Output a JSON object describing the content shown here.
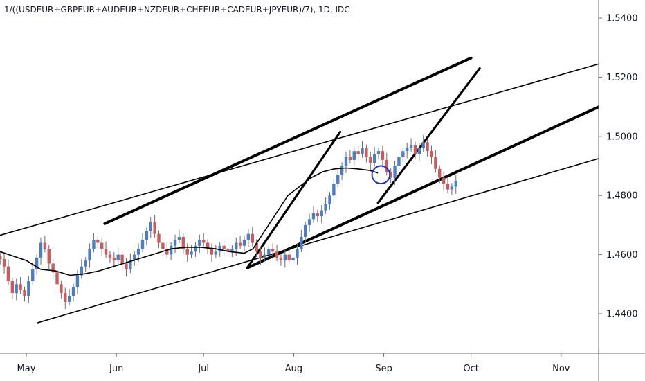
{
  "symbol_title": "1/((USDEUR+GBPEUR+AUDEUR+NZDEUR+CHFEUR+CADEUR+JPYEUR)/7), 1D, IDC",
  "colors": {
    "up": "#4a7fc4",
    "down": "#cd5a5a",
    "wick": "#6b6b6b",
    "ma": "#000000",
    "trendline": "#000000",
    "circle": "#1f2fd0",
    "axis": "#6b6b6b"
  },
  "chart_data": {
    "type": "candlestick",
    "title": "1/((USDEUR+GBPEUR+AUDEUR+NZDEUR+CHFEUR+CADEUR+JPYEUR)/7), 1D, IDC",
    "x_tick_labels": [
      "May",
      "Jun",
      "Jul",
      "Aug",
      "Sep",
      "Oct",
      "Nov"
    ],
    "x_tick_days": [
      0,
      31,
      61,
      92,
      123,
      153,
      184
    ],
    "y_tick_labels": [
      "1.4400",
      "1.4600",
      "1.4800",
      "1.5000",
      "1.5200",
      "1.5400"
    ],
    "ylim": [
      1.4285,
      1.545
    ],
    "xlim_days": [
      -9,
      197
    ],
    "candles_daily_closes": [
      1.4585,
      1.456,
      1.451,
      1.447,
      1.45,
      1.448,
      1.446,
      1.451,
      1.455,
      1.459,
      1.464,
      1.462,
      1.457,
      1.454,
      1.45,
      1.447,
      1.444,
      1.446,
      1.449,
      1.453,
      1.456,
      1.458,
      1.462,
      1.465,
      1.464,
      1.462,
      1.46,
      1.459,
      1.458,
      1.46,
      1.457,
      1.455,
      1.458,
      1.46,
      1.462,
      1.465,
      1.468,
      1.471,
      1.467,
      1.464,
      1.462,
      1.46,
      1.463,
      1.465,
      1.466,
      1.462,
      1.46,
      1.461,
      1.463,
      1.465,
      1.464,
      1.462,
      1.46,
      1.461,
      1.463,
      1.462,
      1.461,
      1.462,
      1.464,
      1.463,
      1.465,
      1.467,
      1.464,
      1.461,
      1.459,
      1.46,
      1.462,
      1.461,
      1.459,
      1.458,
      1.46,
      1.458,
      1.459,
      1.462,
      1.466,
      1.47,
      1.472,
      1.474,
      1.473,
      1.475,
      1.477,
      1.48,
      1.484,
      1.487,
      1.49,
      1.493,
      1.492,
      1.495,
      1.494,
      1.496,
      1.493,
      1.491,
      1.494,
      1.495,
      1.492,
      1.488,
      1.486,
      1.49,
      1.493,
      1.495,
      1.496,
      1.497,
      1.494,
      1.496,
      1.498,
      1.495,
      1.493,
      1.489,
      1.486,
      1.484,
      1.482,
      1.483,
      1.485
    ],
    "moving_average": [
      [
        -9,
        1.461
      ],
      [
        0,
        1.458
      ],
      [
        5,
        1.455
      ],
      [
        10,
        1.4545
      ],
      [
        15,
        1.453
      ],
      [
        20,
        1.4535
      ],
      [
        25,
        1.4545
      ],
      [
        30,
        1.456
      ],
      [
        35,
        1.4575
      ],
      [
        40,
        1.459
      ],
      [
        45,
        1.4605
      ],
      [
        50,
        1.462
      ],
      [
        55,
        1.4625
      ],
      [
        60,
        1.4625
      ],
      [
        65,
        1.462
      ],
      [
        70,
        1.461
      ],
      [
        75,
        1.4605
      ],
      [
        78,
        1.462
      ],
      [
        82,
        1.468
      ],
      [
        86,
        1.474
      ],
      [
        90,
        1.48
      ],
      [
        94,
        1.483
      ],
      [
        98,
        1.486
      ],
      [
        102,
        1.488
      ],
      [
        106,
        1.489
      ],
      [
        110,
        1.4893
      ],
      [
        114,
        1.489
      ],
      [
        118,
        1.4885
      ],
      [
        121,
        1.4876
      ]
    ],
    "annotations": {
      "trendlines": [
        {
          "from": [
            -11,
            1.466
          ],
          "to": [
            197,
            1.5245
          ]
        },
        {
          "from": [
            4,
            1.437
          ],
          "to": [
            197,
            1.4925
          ]
        },
        {
          "from": [
            27,
            1.4705
          ],
          "to": [
            153,
            1.5265
          ]
        },
        {
          "from": [
            76,
            1.4555
          ],
          "to": [
            197,
            1.51
          ]
        },
        {
          "from": [
            76,
            1.4555
          ],
          "to": [
            108,
            1.5015
          ]
        },
        {
          "from": [
            121,
            1.4775
          ],
          "to": [
            156,
            1.523
          ]
        }
      ],
      "circle": {
        "center": [
          122,
          1.487
        ],
        "radius_price": 0.003
      }
    }
  }
}
